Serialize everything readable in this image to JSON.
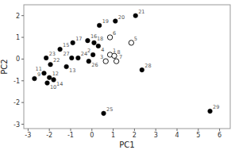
{
  "chart_data": {
    "type": "scatter",
    "xlabel": "PC1",
    "ylabel": "PC2",
    "xlim": [
      -3.2,
      6.5
    ],
    "ylim": [
      -3.2,
      2.5
    ],
    "xticks": [
      -3,
      -2,
      -1,
      0,
      1,
      2,
      3,
      4,
      5,
      6
    ],
    "yticks": [
      -3,
      -2,
      -1,
      0,
      1,
      2
    ],
    "series": [
      {
        "marker": "filled",
        "color": "black",
        "labels": [
          "9",
          "10",
          "11",
          "12",
          "14",
          "22",
          "23",
          "13",
          "15",
          "17",
          "27",
          "24",
          "16",
          "18",
          "4",
          "26",
          "2",
          "19",
          "20",
          "21",
          "28",
          "25",
          "29"
        ],
        "x": [
          -2.7,
          -2.1,
          -2.25,
          -2.0,
          -1.8,
          -1.95,
          -2.15,
          -1.2,
          -1.5,
          -0.9,
          -0.95,
          -0.65,
          -0.2,
          0.1,
          0.3,
          -0.15,
          0.05,
          0.35,
          1.1,
          2.05,
          2.35,
          0.55,
          5.55
        ],
        "values": [
          -0.9,
          -1.1,
          -0.65,
          -0.85,
          -0.95,
          -0.25,
          0.05,
          -0.35,
          0.45,
          0.75,
          0.05,
          0.05,
          0.85,
          0.75,
          0.6,
          -0.1,
          0.2,
          1.55,
          1.75,
          2.0,
          -0.5,
          -2.5,
          -2.4
        ]
      },
      {
        "marker": "open",
        "color": "black",
        "labels": [
          "6",
          "5",
          "1",
          "8",
          "3",
          "7"
        ],
        "x": [
          0.85,
          1.85,
          0.85,
          1.05,
          0.65,
          1.15
        ],
        "values": [
          1.0,
          0.75,
          0.2,
          0.15,
          -0.1,
          -0.1
        ]
      }
    ]
  }
}
